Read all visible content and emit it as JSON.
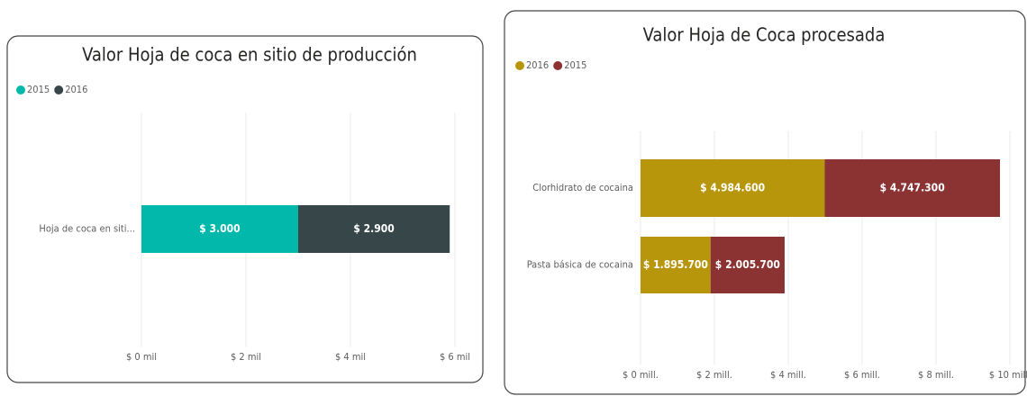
{
  "chart_data": [
    {
      "type": "stacked-hbar",
      "title": "Valor Hoja de coca en sitio de producción",
      "categories": [
        "Hoja de coca en siti..."
      ],
      "series": [
        {
          "name": "2015",
          "color": "#01b8aa",
          "values": [
            3000
          ],
          "value_labels": [
            "$ 3.000"
          ]
        },
        {
          "name": "2016",
          "color": "#374649",
          "values": [
            2900
          ],
          "value_labels": [
            "$ 2.900"
          ]
        }
      ],
      "xlim": [
        0,
        6000
      ],
      "xticks": [
        {
          "value": 0,
          "label": "$ 0 mil"
        },
        {
          "value": 2000,
          "label": "$ 2 mil"
        },
        {
          "value": 4000,
          "label": "$ 4 mil"
        },
        {
          "value": 6000,
          "label": "$ 6 mil"
        }
      ],
      "grid": true,
      "legend": "top-left"
    },
    {
      "type": "stacked-hbar",
      "title": "Valor Hoja de Coca procesada",
      "categories": [
        "Clorhidrato de cocaina",
        "Pasta básica de cocaina"
      ],
      "series": [
        {
          "name": "2016",
          "color": "#b8960c",
          "values": [
            4984600,
            1895700
          ],
          "value_labels": [
            "$ 4.984.600",
            "$ 1.895.700"
          ]
        },
        {
          "name": "2015",
          "color": "#8b3232",
          "values": [
            4747300,
            2005700
          ],
          "value_labels": [
            "$ 4.747.300",
            "$ 2.005.700"
          ]
        }
      ],
      "xlim": [
        0,
        10000000
      ],
      "xticks": [
        {
          "value": 0,
          "label": "$ 0 mill."
        },
        {
          "value": 2000000,
          "label": "$ 2 mill."
        },
        {
          "value": 4000000,
          "label": "$ 4 mill."
        },
        {
          "value": 6000000,
          "label": "$ 6 mill."
        },
        {
          "value": 8000000,
          "label": "$ 8 mill."
        },
        {
          "value": 10000000,
          "label": "$ 10 mill."
        }
      ],
      "grid": true,
      "legend": "top-left"
    }
  ]
}
